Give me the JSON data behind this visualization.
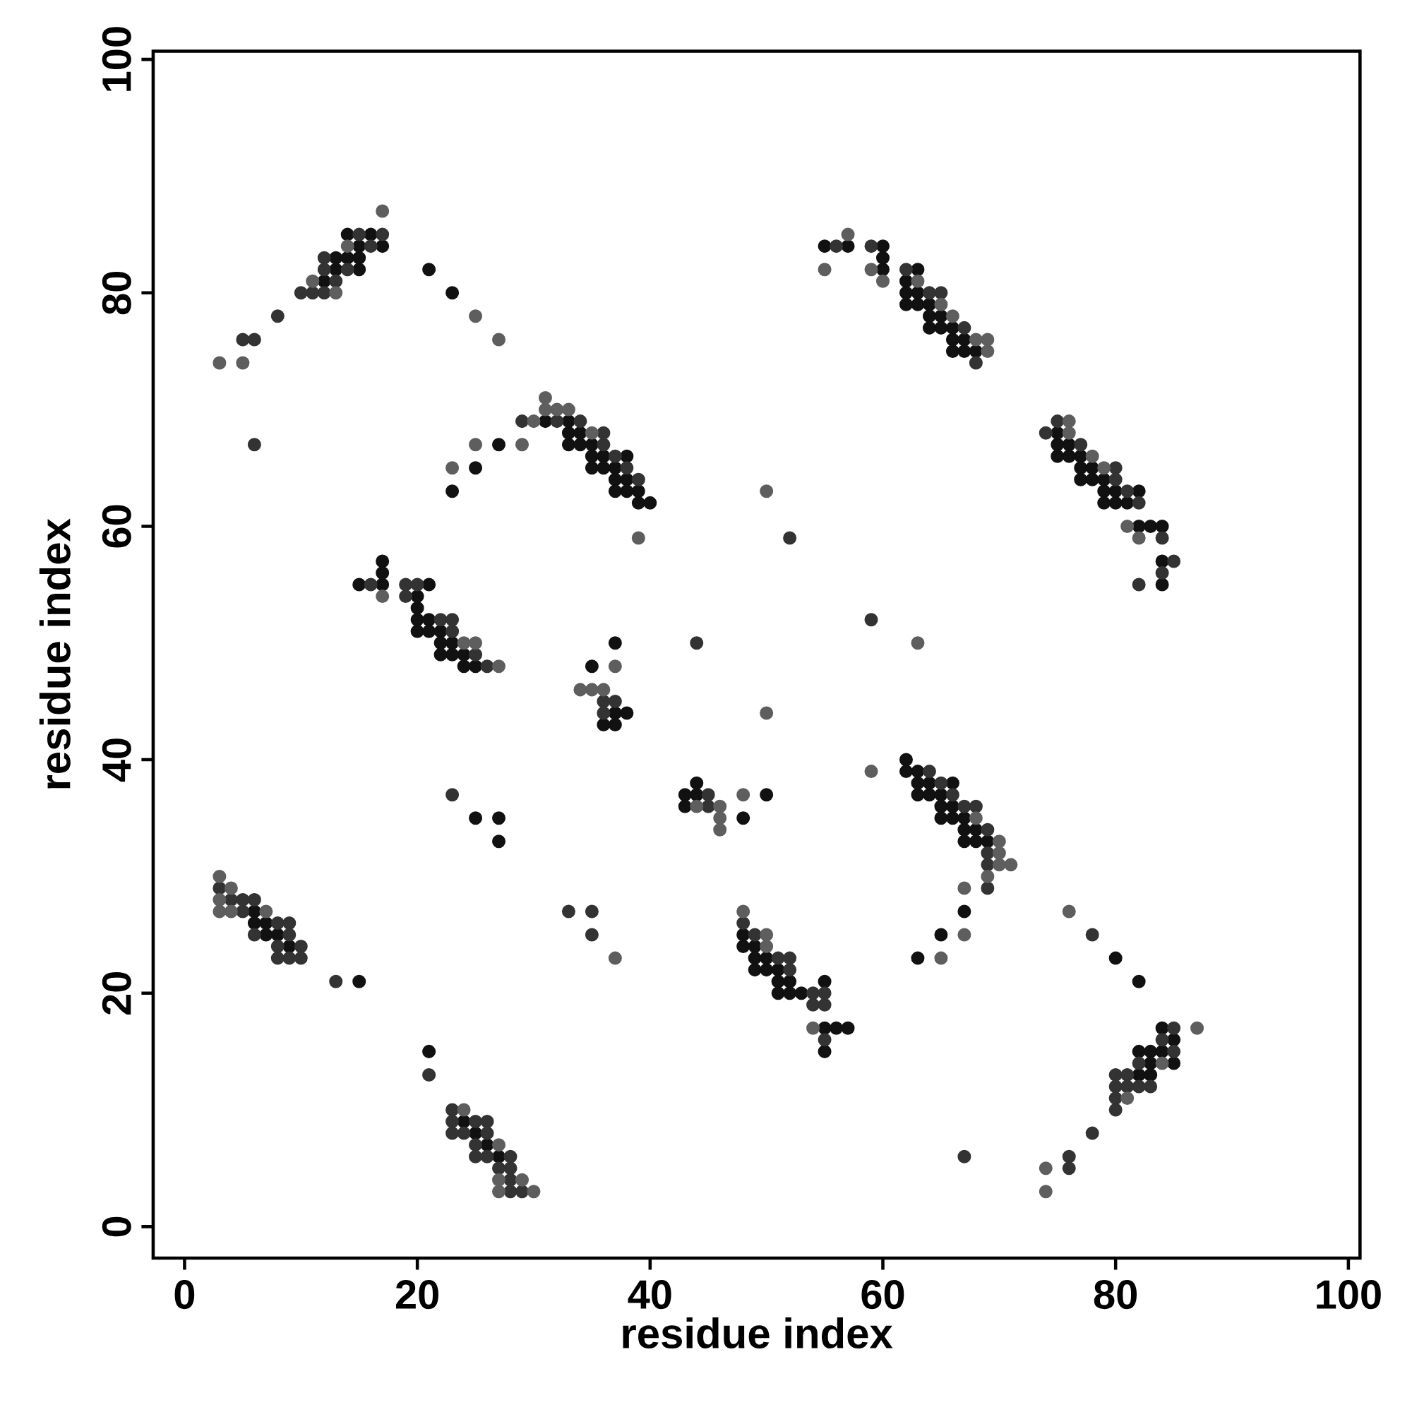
{
  "chart_data": {
    "type": "scatter",
    "xlabel": "residue index",
    "ylabel": "residue index",
    "xlim": [
      -2.7,
      101
    ],
    "ylim": [
      -2.7,
      100.7
    ],
    "xticks": [
      0,
      20,
      40,
      60,
      80,
      100
    ],
    "yticks": [
      0,
      20,
      40,
      60,
      80,
      100
    ],
    "marker": "circle",
    "series": [
      {
        "color": "#111111",
        "x": [
          14,
          16,
          15,
          17,
          13,
          14,
          15,
          13,
          15,
          12,
          21,
          23,
          31,
          33,
          33,
          34,
          33,
          34,
          35,
          27,
          35,
          36,
          38,
          35,
          36,
          37,
          25,
          37,
          38,
          37,
          38,
          39,
          23,
          39,
          40,
          17,
          17,
          17,
          15,
          21,
          20,
          20,
          20,
          21,
          20,
          21,
          22,
          22,
          23,
          22,
          23,
          24,
          24,
          25,
          37,
          35,
          37,
          38,
          36,
          37,
          55,
          57,
          60,
          60,
          60,
          63,
          62,
          62,
          63,
          62,
          63,
          64,
          64,
          65,
          64,
          65,
          66,
          66,
          67,
          66,
          67,
          68,
          75,
          75,
          76,
          75,
          76,
          77,
          77,
          78,
          77,
          78,
          79,
          79,
          80,
          82,
          79,
          80,
          81,
          82,
          83,
          84,
          84,
          84,
          44,
          43,
          44,
          43,
          50,
          48,
          62,
          62,
          63,
          63,
          64,
          66,
          63,
          64,
          65,
          65,
          66,
          65,
          66,
          67,
          67,
          68,
          67,
          68,
          69,
          67,
          65,
          63,
          48,
          48,
          49,
          49,
          50,
          49,
          50,
          51,
          51,
          52,
          55,
          51,
          52,
          53,
          55,
          56,
          57,
          55,
          6,
          6,
          7,
          7,
          8,
          9,
          15,
          25,
          27,
          27,
          21,
          24,
          25,
          26,
          27,
          82,
          80,
          84,
          85,
          82,
          83,
          84,
          83,
          85,
          82,
          83
        ],
        "values": [
          85,
          85,
          84,
          84,
          83,
          83,
          83,
          82,
          82,
          81,
          82,
          80,
          69,
          69,
          68,
          68,
          67,
          67,
          67,
          67,
          66,
          66,
          66,
          65,
          65,
          65,
          65,
          64,
          64,
          63,
          63,
          63,
          63,
          62,
          62,
          57,
          56,
          55,
          55,
          55,
          54,
          53,
          52,
          52,
          51,
          51,
          51,
          50,
          50,
          49,
          49,
          49,
          48,
          48,
          50,
          48,
          44,
          44,
          43,
          43,
          84,
          84,
          84,
          83,
          82,
          82,
          81,
          80,
          80,
          79,
          79,
          79,
          78,
          78,
          77,
          77,
          77,
          76,
          76,
          75,
          75,
          75,
          68,
          67,
          67,
          66,
          66,
          66,
          65,
          65,
          64,
          64,
          64,
          63,
          63,
          63,
          62,
          62,
          62,
          60,
          60,
          60,
          57,
          55,
          38,
          37,
          37,
          36,
          37,
          35,
          40,
          39,
          39,
          38,
          38,
          38,
          37,
          37,
          37,
          36,
          36,
          35,
          35,
          35,
          34,
          34,
          33,
          33,
          33,
          27,
          25,
          23,
          25,
          24,
          24,
          23,
          23,
          22,
          22,
          22,
          21,
          21,
          21,
          20,
          20,
          20,
          17,
          17,
          17,
          15,
          27,
          26,
          26,
          25,
          25,
          24,
          21,
          35,
          35,
          33,
          15,
          9,
          8,
          7,
          6,
          21,
          23,
          17,
          16,
          15,
          15,
          15,
          14,
          14,
          13,
          13
        ]
      },
      {
        "color": "#333333",
        "x": [
          15,
          17,
          16,
          12,
          12,
          14,
          13,
          10,
          11,
          12,
          8,
          5,
          6,
          6,
          29,
          32,
          34,
          36,
          36,
          37,
          38,
          39,
          16,
          19,
          20,
          19,
          22,
          23,
          23,
          25,
          26,
          36,
          37,
          36,
          56,
          59,
          62,
          64,
          65,
          67,
          68,
          75,
          74,
          77,
          80,
          80,
          81,
          82,
          84,
          85,
          84,
          82,
          52,
          59,
          44,
          45,
          45,
          64,
          65,
          66,
          67,
          68,
          69,
          69,
          69,
          69,
          48,
          49,
          51,
          52,
          52,
          54,
          55,
          54,
          55,
          55,
          3,
          4,
          5,
          6,
          5,
          8,
          9,
          6,
          9,
          8,
          10,
          8,
          9,
          10,
          13,
          33,
          35,
          35,
          23,
          21,
          23,
          23,
          25,
          26,
          23,
          24,
          26,
          25,
          25,
          26,
          28,
          27,
          28,
          28,
          28,
          29,
          78,
          85,
          84,
          85,
          82,
          80,
          81,
          80,
          81,
          82,
          83,
          80,
          80,
          78,
          76,
          76,
          67
        ],
        "values": [
          85,
          85,
          84,
          83,
          82,
          82,
          81,
          80,
          80,
          80,
          78,
          76,
          76,
          67,
          69,
          69,
          69,
          68,
          67,
          66,
          65,
          64,
          55,
          55,
          55,
          54,
          52,
          52,
          51,
          49,
          48,
          45,
          45,
          44,
          84,
          84,
          82,
          80,
          80,
          77,
          74,
          69,
          68,
          67,
          65,
          64,
          63,
          62,
          59,
          57,
          56,
          55,
          59,
          52,
          50,
          37,
          36,
          39,
          38,
          37,
          36,
          36,
          34,
          32,
          31,
          29,
          26,
          25,
          23,
          23,
          22,
          20,
          20,
          19,
          19,
          16,
          29,
          28,
          28,
          28,
          27,
          26,
          26,
          25,
          25,
          24,
          24,
          23,
          23,
          23,
          21,
          27,
          27,
          25,
          37,
          13,
          10,
          9,
          9,
          9,
          8,
          8,
          8,
          7,
          6,
          6,
          6,
          5,
          5,
          4,
          3,
          3,
          25,
          17,
          16,
          15,
          14,
          13,
          13,
          12,
          12,
          12,
          12,
          11,
          10,
          8,
          6,
          5,
          6
        ]
      },
      {
        "color": "#5e5e5e",
        "x": [
          17,
          14,
          11,
          13,
          3,
          5,
          25,
          27,
          31,
          31,
          32,
          33,
          30,
          35,
          25,
          29,
          23,
          39,
          17,
          24,
          25,
          27,
          37,
          34,
          35,
          36,
          57,
          55,
          59,
          60,
          63,
          65,
          66,
          68,
          69,
          69,
          76,
          76,
          78,
          79,
          81,
          82,
          50,
          63,
          50,
          44,
          46,
          46,
          46,
          48,
          59,
          68,
          70,
          70,
          70,
          71,
          69,
          67,
          67,
          65,
          48,
          50,
          50,
          54,
          3,
          4,
          3,
          3,
          4,
          7,
          37,
          24,
          27,
          27,
          29,
          27,
          30,
          76,
          87,
          84,
          81,
          74,
          74
        ],
        "values": [
          87,
          84,
          81,
          80,
          74,
          74,
          78,
          76,
          71,
          70,
          70,
          70,
          69,
          68,
          67,
          67,
          65,
          59,
          54,
          50,
          50,
          48,
          48,
          46,
          46,
          46,
          85,
          82,
          82,
          81,
          81,
          79,
          78,
          76,
          76,
          75,
          69,
          68,
          66,
          65,
          60,
          59,
          63,
          50,
          44,
          36,
          36,
          35,
          34,
          37,
          39,
          35,
          33,
          32,
          31,
          31,
          30,
          29,
          25,
          23,
          27,
          25,
          24,
          17,
          30,
          29,
          28,
          27,
          27,
          27,
          23,
          10,
          7,
          4,
          4,
          3,
          3,
          27,
          17,
          14,
          11,
          5,
          3
        ]
      }
    ]
  }
}
